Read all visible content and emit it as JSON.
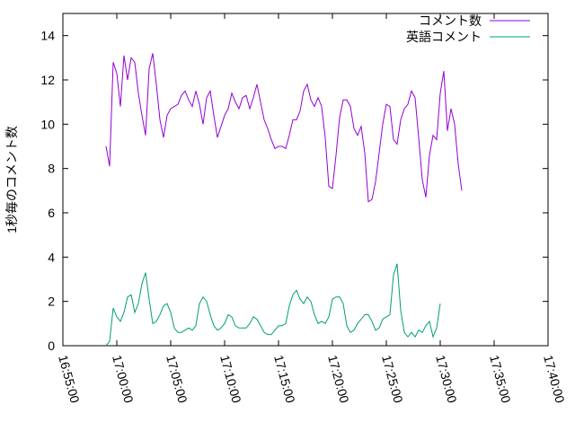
{
  "chart_data": {
    "type": "line",
    "title": "",
    "xlabel": "",
    "ylabel": "1秒毎のコメント数",
    "xlim": [
      "16:55:00",
      "17:40:00"
    ],
    "ylim": [
      0,
      15
    ],
    "x_ticks": [
      "16:55:00",
      "17:00:00",
      "17:05:00",
      "17:10:00",
      "17:15:00",
      "17:20:00",
      "17:25:00",
      "17:30:00",
      "17:35:00",
      "17:40:00"
    ],
    "y_ticks": [
      "0",
      "2",
      "4",
      "6",
      "8",
      "10",
      "12",
      "14"
    ],
    "grid": false,
    "legend_position": "top-right",
    "series": [
      {
        "name": "コメント数",
        "color": "#9400d3",
        "points": [
          [
            "16:59:00",
            9.0
          ],
          [
            "16:59:20",
            8.1
          ],
          [
            "16:59:40",
            12.8
          ],
          [
            "17:00:00",
            12.3
          ],
          [
            "17:00:20",
            10.8
          ],
          [
            "17:00:40",
            13.1
          ],
          [
            "17:01:00",
            12.0
          ],
          [
            "17:01:20",
            13.0
          ],
          [
            "17:01:40",
            12.8
          ],
          [
            "17:02:00",
            11.4
          ],
          [
            "17:02:20",
            10.4
          ],
          [
            "17:02:40",
            9.5
          ],
          [
            "17:03:00",
            12.5
          ],
          [
            "17:03:20",
            13.2
          ],
          [
            "17:03:40",
            11.8
          ],
          [
            "17:04:00",
            10.2
          ],
          [
            "17:04:20",
            9.4
          ],
          [
            "17:04:40",
            10.4
          ],
          [
            "17:05:00",
            10.7
          ],
          [
            "17:05:20",
            10.8
          ],
          [
            "17:05:40",
            10.9
          ],
          [
            "17:06:00",
            11.3
          ],
          [
            "17:06:20",
            11.5
          ],
          [
            "17:06:40",
            11.1
          ],
          [
            "17:07:00",
            10.8
          ],
          [
            "17:07:20",
            11.5
          ],
          [
            "17:07:40",
            10.9
          ],
          [
            "17:08:00",
            10.0
          ],
          [
            "17:08:20",
            11.2
          ],
          [
            "17:08:40",
            11.5
          ],
          [
            "17:09:00",
            10.4
          ],
          [
            "17:09:20",
            9.4
          ],
          [
            "17:09:40",
            9.9
          ],
          [
            "17:10:00",
            10.4
          ],
          [
            "17:10:20",
            10.7
          ],
          [
            "17:10:40",
            11.4
          ],
          [
            "17:11:00",
            11.0
          ],
          [
            "17:11:20",
            10.7
          ],
          [
            "17:11:40",
            11.2
          ],
          [
            "17:12:00",
            11.3
          ],
          [
            "17:12:20",
            10.7
          ],
          [
            "17:12:40",
            11.2
          ],
          [
            "17:13:00",
            11.8
          ],
          [
            "17:13:20",
            11.0
          ],
          [
            "17:13:40",
            10.2
          ],
          [
            "17:14:00",
            9.8
          ],
          [
            "17:14:20",
            9.3
          ],
          [
            "17:14:40",
            8.9
          ],
          [
            "17:15:00",
            9.0
          ],
          [
            "17:15:20",
            9.0
          ],
          [
            "17:15:40",
            8.9
          ],
          [
            "17:16:00",
            9.5
          ],
          [
            "17:16:20",
            10.2
          ],
          [
            "17:16:40",
            10.2
          ],
          [
            "17:17:00",
            10.6
          ],
          [
            "17:17:20",
            11.5
          ],
          [
            "17:17:40",
            11.8
          ],
          [
            "17:18:00",
            11.1
          ],
          [
            "17:18:20",
            10.8
          ],
          [
            "17:18:40",
            11.2
          ],
          [
            "17:19:00",
            10.8
          ],
          [
            "17:19:20",
            9.4
          ],
          [
            "17:19:40",
            7.2
          ],
          [
            "17:20:00",
            7.1
          ],
          [
            "17:20:20",
            8.6
          ],
          [
            "17:20:40",
            10.3
          ],
          [
            "17:21:00",
            11.1
          ],
          [
            "17:21:20",
            11.1
          ],
          [
            "17:21:40",
            10.8
          ],
          [
            "17:22:00",
            9.8
          ],
          [
            "17:22:20",
            9.5
          ],
          [
            "17:22:40",
            9.9
          ],
          [
            "17:23:00",
            8.7
          ],
          [
            "17:23:20",
            6.5
          ],
          [
            "17:23:40",
            6.6
          ],
          [
            "17:24:00",
            7.4
          ],
          [
            "17:24:20",
            8.7
          ],
          [
            "17:24:40",
            10.0
          ],
          [
            "17:25:00",
            10.9
          ],
          [
            "17:25:20",
            10.8
          ],
          [
            "17:25:40",
            9.3
          ],
          [
            "17:26:00",
            9.1
          ],
          [
            "17:26:20",
            10.2
          ],
          [
            "17:26:40",
            10.7
          ],
          [
            "17:27:00",
            10.9
          ],
          [
            "17:27:20",
            11.5
          ],
          [
            "17:27:40",
            11.2
          ],
          [
            "17:28:00",
            9.4
          ],
          [
            "17:28:20",
            7.5
          ],
          [
            "17:28:40",
            6.7
          ],
          [
            "17:29:00",
            8.6
          ],
          [
            "17:29:20",
            9.5
          ],
          [
            "17:29:40",
            9.3
          ],
          [
            "17:30:00",
            11.4
          ],
          [
            "17:30:20",
            12.4
          ],
          [
            "17:30:40",
            9.7
          ],
          [
            "17:31:00",
            10.7
          ],
          [
            "17:31:20",
            10.0
          ],
          [
            "17:31:40",
            8.2
          ],
          [
            "17:32:00",
            7.0
          ]
        ]
      },
      {
        "name": "英語コメント",
        "color": "#009e73",
        "points": [
          [
            "16:59:00",
            0.0
          ],
          [
            "16:59:20",
            0.2
          ],
          [
            "16:59:40",
            1.7
          ],
          [
            "17:00:00",
            1.3
          ],
          [
            "17:00:20",
            1.1
          ],
          [
            "17:00:40",
            1.5
          ],
          [
            "17:01:00",
            2.2
          ],
          [
            "17:01:20",
            2.3
          ],
          [
            "17:01:40",
            1.5
          ],
          [
            "17:02:00",
            1.9
          ],
          [
            "17:02:20",
            2.8
          ],
          [
            "17:02:40",
            3.3
          ],
          [
            "17:03:00",
            2.1
          ],
          [
            "17:03:20",
            1.0
          ],
          [
            "17:03:40",
            1.1
          ],
          [
            "17:04:00",
            1.4
          ],
          [
            "17:04:20",
            1.8
          ],
          [
            "17:04:40",
            1.9
          ],
          [
            "17:05:00",
            1.5
          ],
          [
            "17:05:20",
            0.8
          ],
          [
            "17:05:40",
            0.6
          ],
          [
            "17:06:00",
            0.6
          ],
          [
            "17:06:20",
            0.7
          ],
          [
            "17:06:40",
            0.8
          ],
          [
            "17:07:00",
            0.7
          ],
          [
            "17:07:20",
            0.9
          ],
          [
            "17:07:40",
            1.9
          ],
          [
            "17:08:00",
            2.2
          ],
          [
            "17:08:20",
            2.0
          ],
          [
            "17:08:40",
            1.4
          ],
          [
            "17:09:00",
            0.9
          ],
          [
            "17:09:20",
            0.7
          ],
          [
            "17:09:40",
            0.8
          ],
          [
            "17:10:00",
            1.0
          ],
          [
            "17:10:20",
            1.4
          ],
          [
            "17:10:40",
            1.3
          ],
          [
            "17:11:00",
            0.9
          ],
          [
            "17:11:20",
            0.8
          ],
          [
            "17:11:40",
            0.8
          ],
          [
            "17:12:00",
            0.8
          ],
          [
            "17:12:20",
            1.0
          ],
          [
            "17:12:40",
            1.3
          ],
          [
            "17:13:00",
            1.2
          ],
          [
            "17:13:20",
            0.9
          ],
          [
            "17:13:40",
            0.6
          ],
          [
            "17:14:00",
            0.5
          ],
          [
            "17:14:20",
            0.5
          ],
          [
            "17:14:40",
            0.7
          ],
          [
            "17:15:00",
            0.9
          ],
          [
            "17:15:20",
            0.9
          ],
          [
            "17:15:40",
            1.0
          ],
          [
            "17:16:00",
            1.8
          ],
          [
            "17:16:20",
            2.3
          ],
          [
            "17:16:40",
            2.5
          ],
          [
            "17:17:00",
            2.1
          ],
          [
            "17:17:20",
            1.9
          ],
          [
            "17:17:40",
            2.2
          ],
          [
            "17:18:00",
            2.0
          ],
          [
            "17:18:20",
            1.4
          ],
          [
            "17:18:40",
            1.0
          ],
          [
            "17:19:00",
            1.1
          ],
          [
            "17:19:20",
            1.0
          ],
          [
            "17:19:40",
            1.3
          ],
          [
            "17:20:00",
            2.1
          ],
          [
            "17:20:20",
            2.2
          ],
          [
            "17:20:40",
            2.2
          ],
          [
            "17:21:00",
            1.9
          ],
          [
            "17:21:20",
            0.9
          ],
          [
            "17:21:40",
            0.6
          ],
          [
            "17:22:00",
            0.7
          ],
          [
            "17:22:20",
            1.0
          ],
          [
            "17:22:40",
            1.2
          ],
          [
            "17:23:00",
            1.4
          ],
          [
            "17:23:20",
            1.4
          ],
          [
            "17:23:40",
            1.1
          ],
          [
            "17:24:00",
            0.7
          ],
          [
            "17:24:20",
            0.8
          ],
          [
            "17:24:40",
            1.2
          ],
          [
            "17:25:00",
            1.3
          ],
          [
            "17:25:20",
            1.4
          ],
          [
            "17:25:40",
            3.2
          ],
          [
            "17:26:00",
            3.7
          ],
          [
            "17:26:20",
            1.6
          ],
          [
            "17:26:40",
            0.6
          ],
          [
            "17:27:00",
            0.4
          ],
          [
            "17:27:20",
            0.6
          ],
          [
            "17:27:40",
            0.4
          ],
          [
            "17:28:00",
            0.7
          ],
          [
            "17:28:20",
            0.6
          ],
          [
            "17:28:40",
            0.9
          ],
          [
            "17:29:00",
            1.1
          ],
          [
            "17:29:20",
            0.4
          ],
          [
            "17:29:40",
            0.8
          ],
          [
            "17:30:00",
            1.9
          ]
        ]
      }
    ]
  }
}
